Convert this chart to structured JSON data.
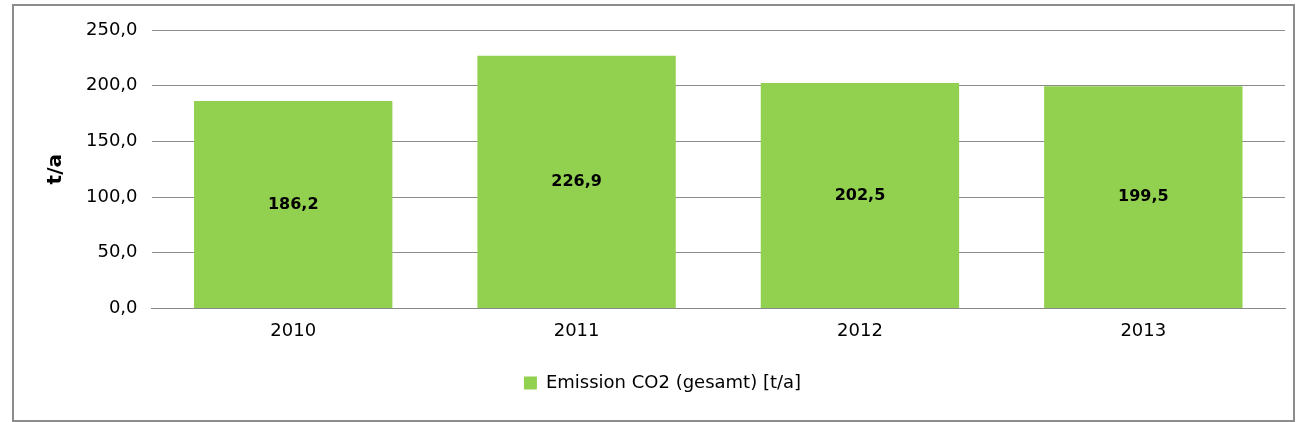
{
  "chart_data": {
    "type": "bar",
    "ylabel": "t/a",
    "categories": [
      "2010",
      "2011",
      "2012",
      "2013"
    ],
    "series": [
      {
        "name": "Emission CO2 (gesamt) [t/a]",
        "color": "#92d050",
        "values": [
          186.2,
          226.9,
          202.5,
          199.5
        ],
        "value_labels": [
          "186,2",
          "226,9",
          "202,5",
          "199,5"
        ]
      }
    ],
    "ylim": [
      0,
      250
    ],
    "yticks": [
      {
        "value": 0,
        "label": "0,0"
      },
      {
        "value": 50,
        "label": "50,0"
      },
      {
        "value": 100,
        "label": "100,0"
      },
      {
        "value": 150,
        "label": "150,0"
      },
      {
        "value": 200,
        "label": "200,0"
      },
      {
        "value": 250,
        "label": "250,0"
      }
    ],
    "grid": "y",
    "legend": "bottom"
  }
}
